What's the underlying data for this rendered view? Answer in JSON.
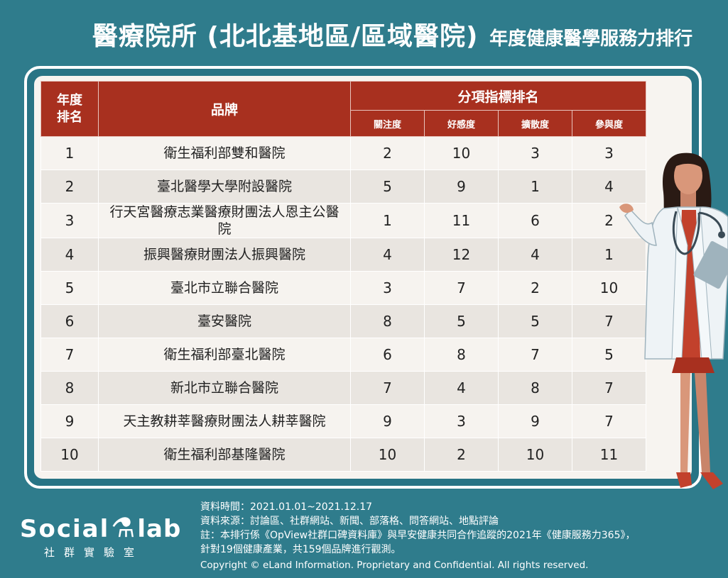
{
  "title": {
    "main": "醫療院所 (北北基地區/區域醫院)",
    "sub": "年度健康醫學服務力排行"
  },
  "table": {
    "header_rank": "年度\n排名",
    "header_brand": "品牌",
    "header_group": "分項指標排名",
    "sub_headers": [
      "關注度",
      "好感度",
      "擴散度",
      "參與度"
    ],
    "rows": [
      {
        "rank": "1",
        "brand": "衛生福利部雙和醫院",
        "attention": "2",
        "favor": "10",
        "spread": "3",
        "engage": "3"
      },
      {
        "rank": "2",
        "brand": "臺北醫學大學附設醫院",
        "attention": "5",
        "favor": "9",
        "spread": "1",
        "engage": "4"
      },
      {
        "rank": "3",
        "brand": "行天宮醫療志業醫療財團法人恩主公醫院",
        "attention": "1",
        "favor": "11",
        "spread": "6",
        "engage": "2"
      },
      {
        "rank": "4",
        "brand": "振興醫療財團法人振興醫院",
        "attention": "4",
        "favor": "12",
        "spread": "4",
        "engage": "1"
      },
      {
        "rank": "5",
        "brand": "臺北市立聯合醫院",
        "attention": "3",
        "favor": "7",
        "spread": "2",
        "engage": "10"
      },
      {
        "rank": "6",
        "brand": "臺安醫院",
        "attention": "8",
        "favor": "5",
        "spread": "5",
        "engage": "7"
      },
      {
        "rank": "7",
        "brand": "衛生福利部臺北醫院",
        "attention": "6",
        "favor": "8",
        "spread": "7",
        "engage": "5"
      },
      {
        "rank": "8",
        "brand": "新北市立聯合醫院",
        "attention": "7",
        "favor": "4",
        "spread": "8",
        "engage": "7"
      },
      {
        "rank": "9",
        "brand": "天主教耕莘醫療財團法人耕莘醫院",
        "attention": "9",
        "favor": "3",
        "spread": "9",
        "engage": "7"
      },
      {
        "rank": "10",
        "brand": "衛生福利部基隆醫院",
        "attention": "10",
        "favor": "2",
        "spread": "10",
        "engage": "11"
      }
    ]
  },
  "logo": {
    "name": "Social lab",
    "sub": "社群實驗室"
  },
  "notes": {
    "period": "資料時間：2021.01.01~2021.12.17",
    "source": "資料來源：討論區、社群網站、新聞、部落格、問答網站、地點評論",
    "note_line1": "註：本排行係《OpView社群口碑資料庫》與早安健康共同合作追蹤的2021年《健康服務力365》，",
    "note_line2": "針對19個健康產業，共159個品牌進行觀測。",
    "copyright": "Copyright © eLand Information. Proprietary and Confidential. All rights reserved."
  },
  "colors": {
    "background": "#2f7c8c",
    "header": "#a8301f",
    "row_light": "#f6f3ef",
    "row_dark": "#e9e5e0"
  }
}
